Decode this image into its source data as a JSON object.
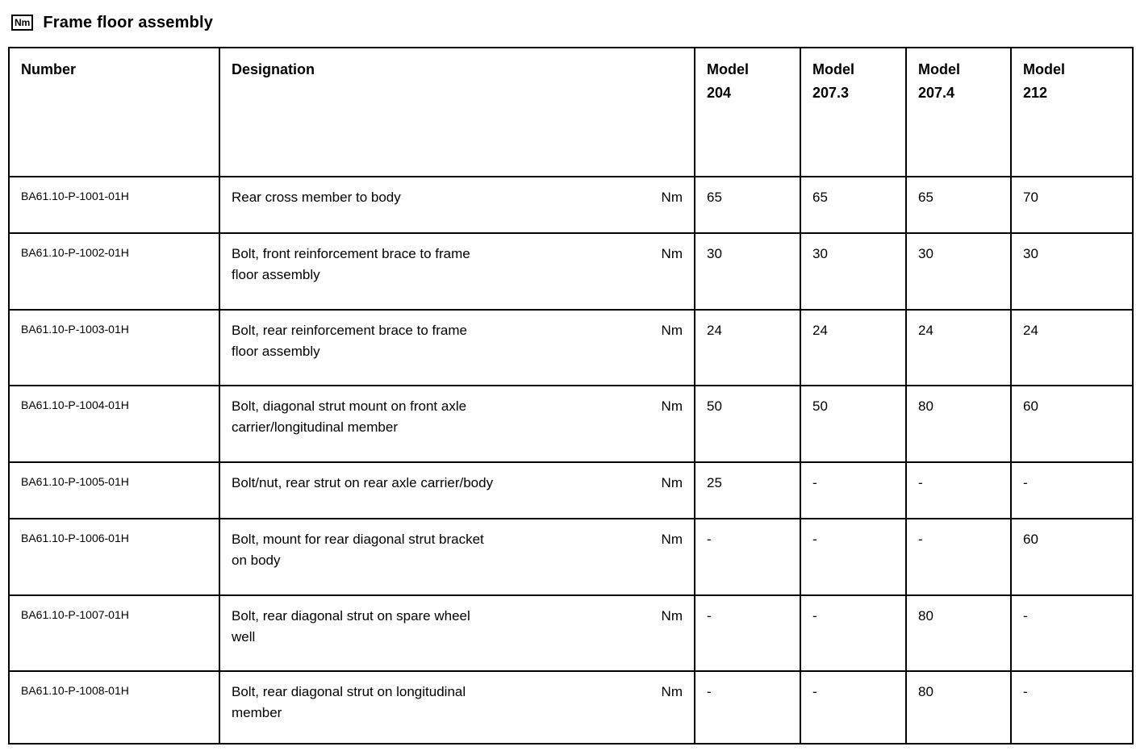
{
  "page": {
    "badge": "Nm",
    "title": "Frame floor assembly"
  },
  "table": {
    "columns": [
      {
        "label": "Number",
        "sub": ""
      },
      {
        "label": "Designation",
        "sub": ""
      },
      {
        "label": "Model",
        "sub": "204"
      },
      {
        "label": "Model",
        "sub": "207.3"
      },
      {
        "label": "Model",
        "sub": "207.4"
      },
      {
        "label": "Model",
        "sub": "212"
      }
    ],
    "rows": [
      {
        "number": "BA61.10-P-1001-01H",
        "designation": "Rear cross member to body",
        "unit": "Nm",
        "values": [
          "65",
          "65",
          "65",
          "70"
        ]
      },
      {
        "number": "BA61.10-P-1002-01H",
        "designation": "Bolt, front reinforcement brace to frame\nfloor assembly",
        "unit": "Nm",
        "values": [
          "30",
          "30",
          "30",
          "30"
        ]
      },
      {
        "number": "BA61.10-P-1003-01H",
        "designation": "Bolt, rear reinforcement brace to frame\nfloor assembly",
        "unit": "Nm",
        "values": [
          "24",
          "24",
          "24",
          "24"
        ]
      },
      {
        "number": "BA61.10-P-1004-01H",
        "designation": "Bolt, diagonal strut mount on front axle\ncarrier/longitudinal member",
        "unit": "Nm",
        "values": [
          "50",
          "50",
          "80",
          "60"
        ]
      },
      {
        "number": "BA61.10-P-1005-01H",
        "designation": "Bolt/nut, rear strut on rear axle carrier/body",
        "unit": "Nm",
        "values": [
          "25",
          "-",
          "-",
          "-"
        ]
      },
      {
        "number": "BA61.10-P-1006-01H",
        "designation": "Bolt, mount for rear diagonal strut bracket\non body",
        "unit": "Nm",
        "values": [
          "-",
          "-",
          "-",
          "60"
        ]
      },
      {
        "number": "BA61.10-P-1007-01H",
        "designation": "Bolt, rear diagonal strut on spare wheel\nwell",
        "unit": "Nm",
        "values": [
          "-",
          "-",
          "80",
          "-"
        ]
      },
      {
        "number": "BA61.10-P-1008-01H",
        "designation": "Bolt, rear diagonal strut on longitudinal\nmember",
        "unit": "Nm",
        "values": [
          "-",
          "-",
          "80",
          "-"
        ]
      }
    ]
  }
}
